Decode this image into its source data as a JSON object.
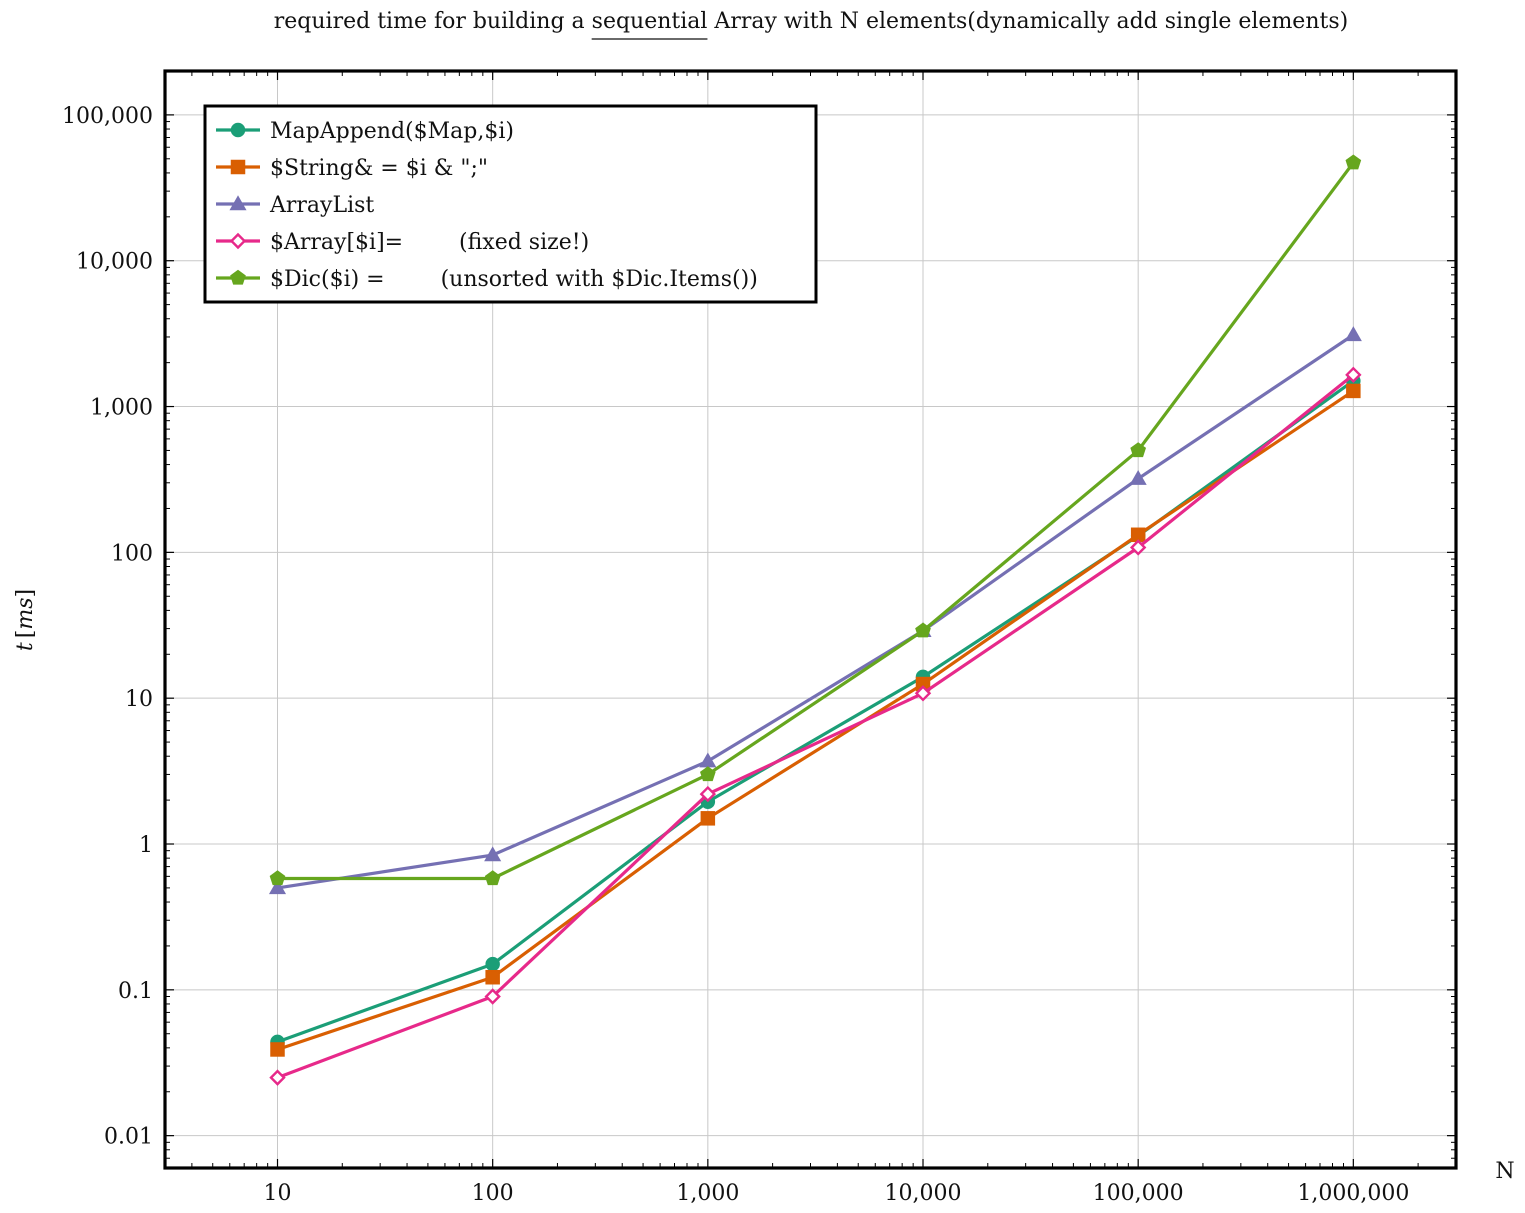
{
  "chart_data": {
    "type": "line",
    "title_parts": {
      "before": "required time for building a ",
      "underlined": "sequential",
      "after": " Array with N elements(dynamically add single elements)"
    },
    "xlabel": "N",
    "ylabel_var": "t",
    "ylabel_unit": "ms",
    "x_scale": "log",
    "y_scale": "log",
    "x": [
      10,
      100,
      1000,
      10000,
      100000,
      1000000
    ],
    "x_tick_labels": [
      "10",
      "100",
      "1,000",
      "10,000",
      "100,000",
      "1,000,000"
    ],
    "xlim": [
      3,
      3000000
    ],
    "y_ticks": [
      0.01,
      0.1,
      1,
      10,
      100,
      1000,
      10000,
      100000
    ],
    "y_tick_labels": [
      "0.01",
      "0.1",
      "1",
      "10",
      "100",
      "1,000",
      "10,000",
      "100,000"
    ],
    "ylim": [
      0.006,
      200000
    ],
    "grid": true,
    "legend_position": "top-left",
    "series": [
      {
        "name": "MapAppend($Map,$i)",
        "color": "#1b9e77",
        "marker": "circle",
        "values": [
          0.044,
          0.15,
          1.95,
          14,
          130,
          1500
        ]
      },
      {
        "name": "$String& = $i & \";\"",
        "color": "#d95f02",
        "marker": "square",
        "values": [
          0.039,
          0.122,
          1.5,
          12.5,
          132,
          1280
        ]
      },
      {
        "name": "ArrayList",
        "color": "#7570b3",
        "marker": "triangle",
        "values": [
          0.5,
          0.84,
          3.7,
          29,
          320,
          3100
        ]
      },
      {
        "name": "$Array[$i]=        (fixed size!)",
        "color": "#e7298a",
        "marker": "diamond",
        "values": [
          0.025,
          0.09,
          2.2,
          10.8,
          108,
          1650
        ]
      },
      {
        "name": "$Dic($i) =        (unsorted with $Dic.Items())",
        "color": "#66a61e",
        "marker": "pentagon",
        "values": [
          0.58,
          0.58,
          3.0,
          29,
          500,
          47000
        ]
      }
    ]
  }
}
